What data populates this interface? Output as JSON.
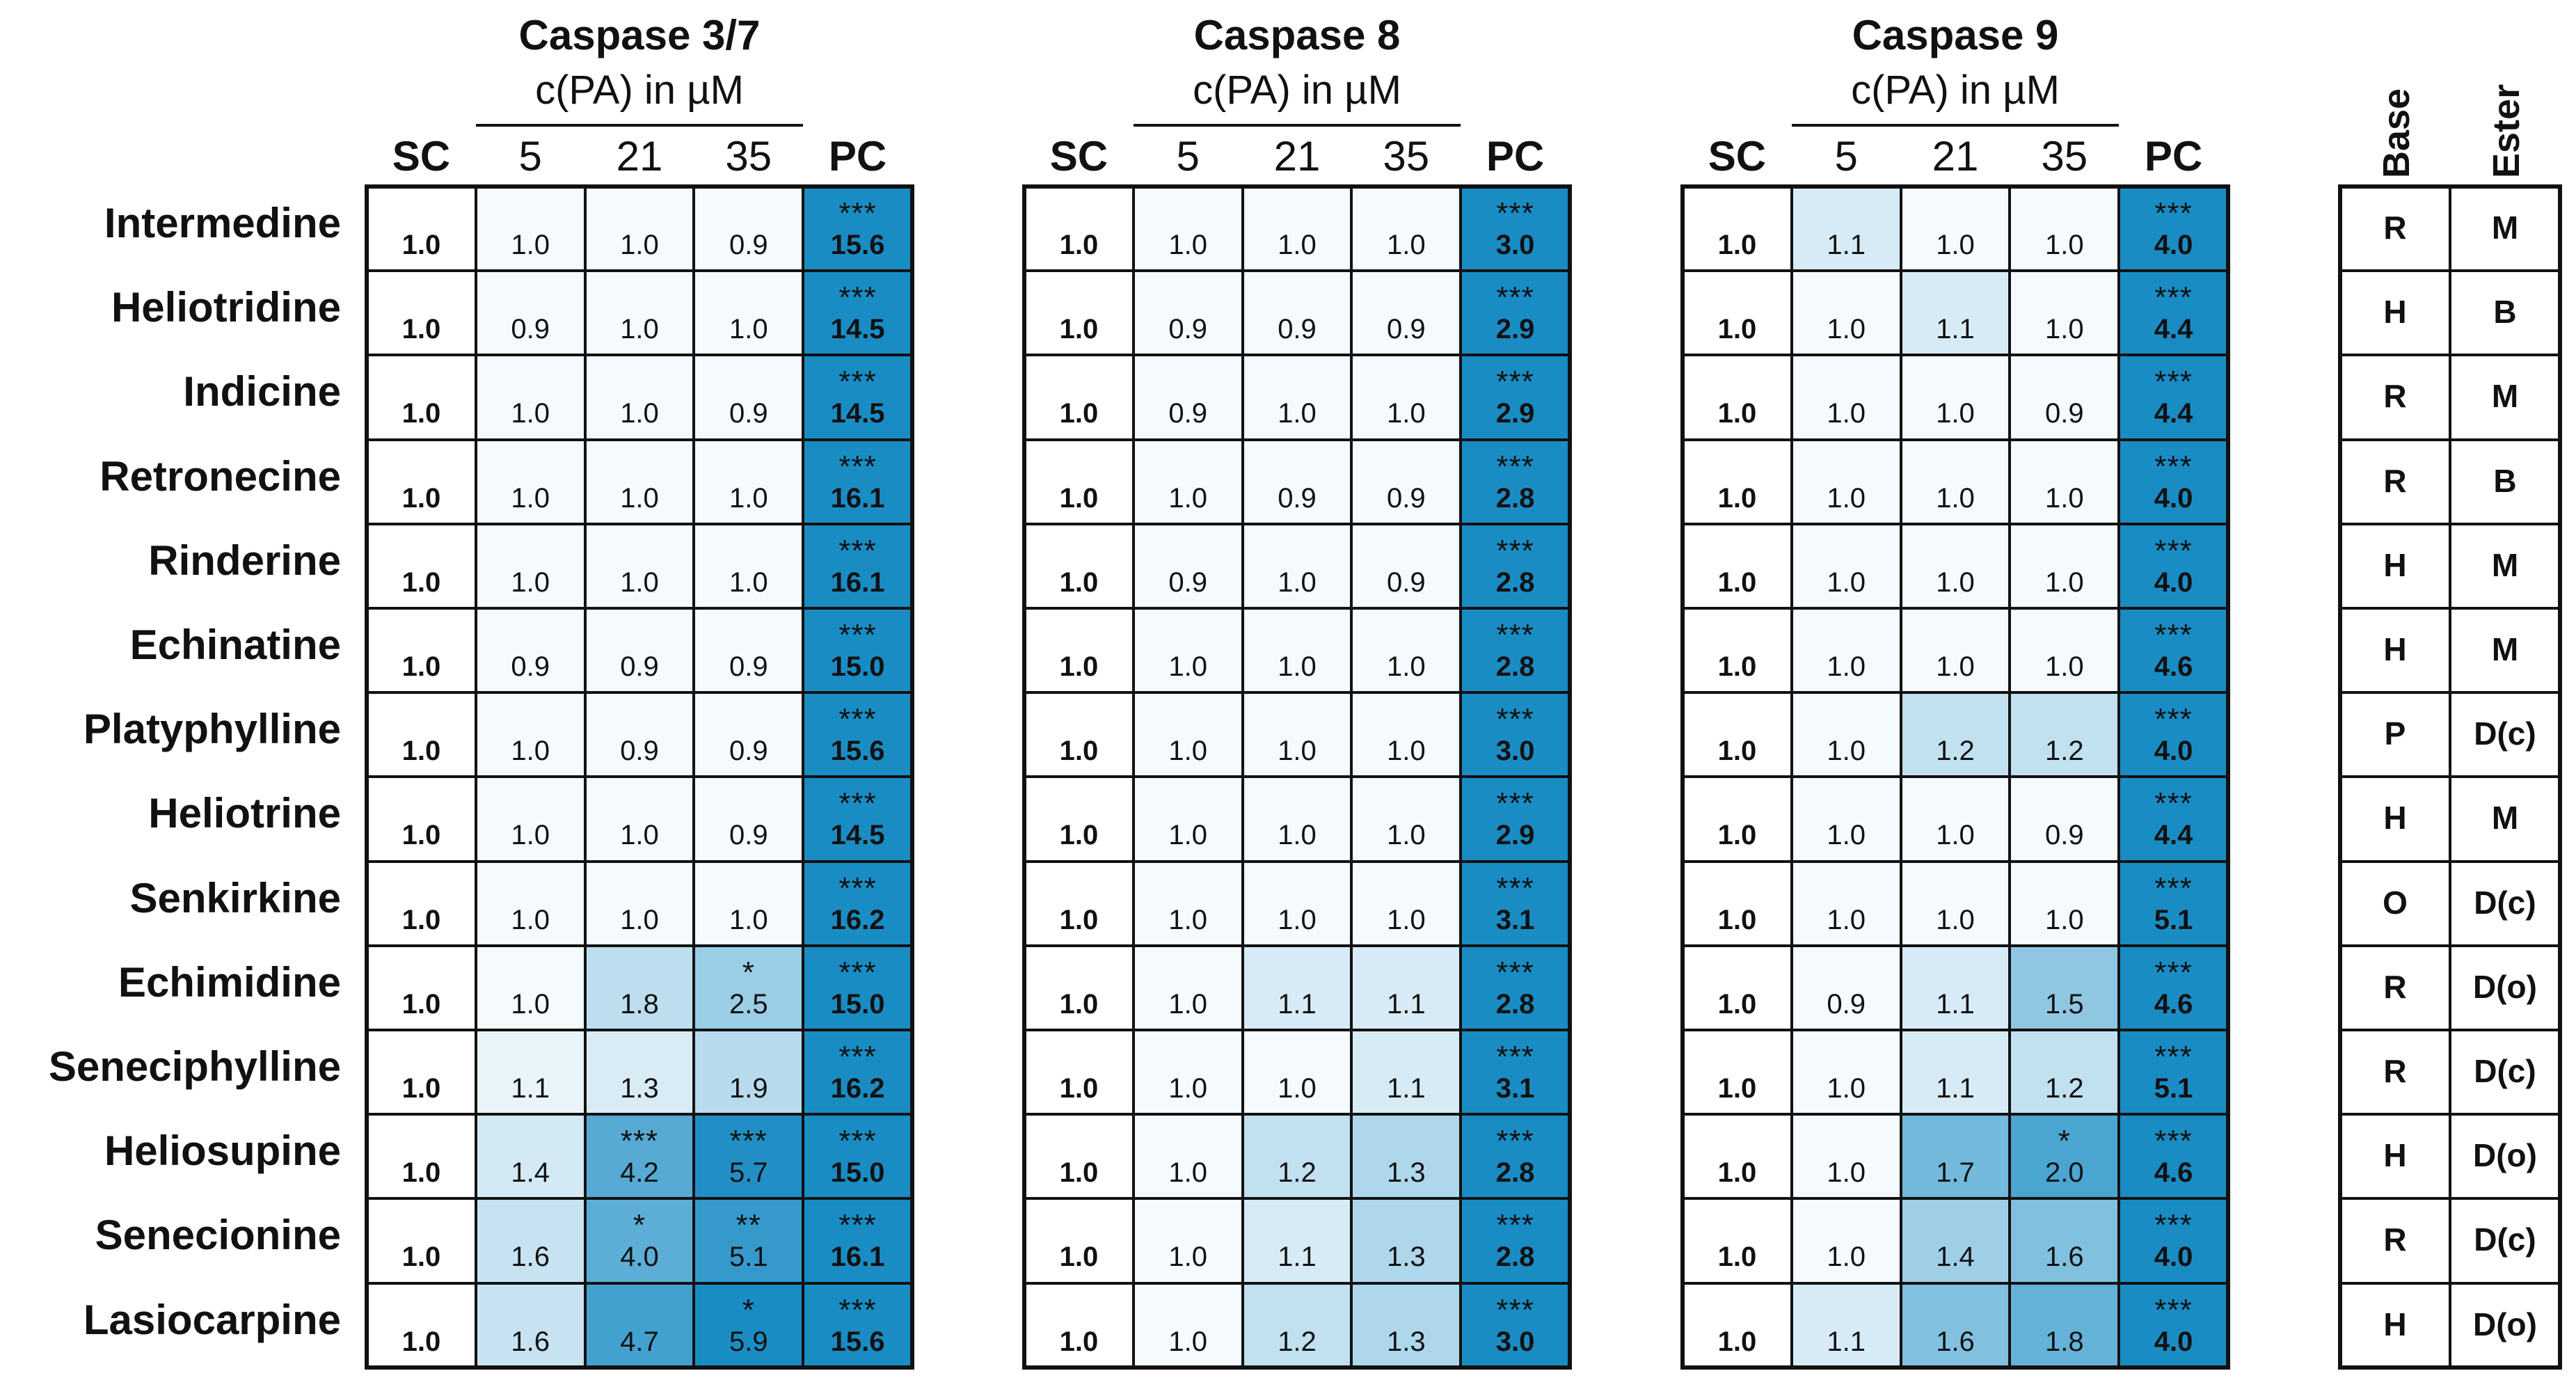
{
  "chart_data": {
    "type": "heatmap",
    "unit_label": "c(PA) in µM",
    "column_labels": [
      "SC",
      "5",
      "21",
      "35",
      "PC"
    ],
    "rows": [
      "Intermedine",
      "Heliotridine",
      "Indicine",
      "Retronecine",
      "Rinderine",
      "Echinatine",
      "Platyphylline",
      "Heliotrine",
      "Senkirkine",
      "Echimidine",
      "Seneciphylline",
      "Heliosupine",
      "Senecionine",
      "Lasiocarpine"
    ],
    "panels": [
      {
        "title": "Caspase 3/7",
        "values": [
          [
            "1.0",
            "1.0",
            "1.0",
            "0.9",
            "15.6"
          ],
          [
            "1.0",
            "0.9",
            "1.0",
            "1.0",
            "14.5"
          ],
          [
            "1.0",
            "1.0",
            "1.0",
            "0.9",
            "14.5"
          ],
          [
            "1.0",
            "1.0",
            "1.0",
            "1.0",
            "16.1"
          ],
          [
            "1.0",
            "1.0",
            "1.0",
            "1.0",
            "16.1"
          ],
          [
            "1.0",
            "0.9",
            "0.9",
            "0.9",
            "15.0"
          ],
          [
            "1.0",
            "1.0",
            "0.9",
            "0.9",
            "15.6"
          ],
          [
            "1.0",
            "1.0",
            "1.0",
            "0.9",
            "14.5"
          ],
          [
            "1.0",
            "1.0",
            "1.0",
            "1.0",
            "16.2"
          ],
          [
            "1.0",
            "1.0",
            "1.8",
            "2.5",
            "15.0"
          ],
          [
            "1.0",
            "1.1",
            "1.3",
            "1.9",
            "16.2"
          ],
          [
            "1.0",
            "1.4",
            "4.2",
            "5.7",
            "15.0"
          ],
          [
            "1.0",
            "1.6",
            "4.0",
            "5.1",
            "16.1"
          ],
          [
            "1.0",
            "1.6",
            "4.7",
            "5.9",
            "15.6"
          ]
        ],
        "significance": [
          [
            "",
            "",
            "",
            "",
            "***"
          ],
          [
            "",
            "",
            "",
            "",
            "***"
          ],
          [
            "",
            "",
            "",
            "",
            "***"
          ],
          [
            "",
            "",
            "",
            "",
            "***"
          ],
          [
            "",
            "",
            "",
            "",
            "***"
          ],
          [
            "",
            "",
            "",
            "",
            "***"
          ],
          [
            "",
            "",
            "",
            "",
            "***"
          ],
          [
            "",
            "",
            "",
            "",
            "***"
          ],
          [
            "",
            "",
            "",
            "",
            "***"
          ],
          [
            "",
            "",
            "",
            "*",
            "***"
          ],
          [
            "",
            "",
            "",
            "",
            "***"
          ],
          [
            "",
            "",
            "***",
            "***",
            "***"
          ],
          [
            "",
            "",
            "*",
            "**",
            "***"
          ],
          [
            "",
            "",
            "",
            "*",
            "***"
          ]
        ]
      },
      {
        "title": "Caspase 8",
        "values": [
          [
            "1.0",
            "1.0",
            "1.0",
            "1.0",
            "3.0"
          ],
          [
            "1.0",
            "0.9",
            "0.9",
            "0.9",
            "2.9"
          ],
          [
            "1.0",
            "0.9",
            "1.0",
            "1.0",
            "2.9"
          ],
          [
            "1.0",
            "1.0",
            "0.9",
            "0.9",
            "2.8"
          ],
          [
            "1.0",
            "0.9",
            "1.0",
            "0.9",
            "2.8"
          ],
          [
            "1.0",
            "1.0",
            "1.0",
            "1.0",
            "2.8"
          ],
          [
            "1.0",
            "1.0",
            "1.0",
            "1.0",
            "3.0"
          ],
          [
            "1.0",
            "1.0",
            "1.0",
            "1.0",
            "2.9"
          ],
          [
            "1.0",
            "1.0",
            "1.0",
            "1.0",
            "3.1"
          ],
          [
            "1.0",
            "1.0",
            "1.1",
            "1.1",
            "2.8"
          ],
          [
            "1.0",
            "1.0",
            "1.0",
            "1.1",
            "3.1"
          ],
          [
            "1.0",
            "1.0",
            "1.2",
            "1.3",
            "2.8"
          ],
          [
            "1.0",
            "1.0",
            "1.1",
            "1.3",
            "2.8"
          ],
          [
            "1.0",
            "1.0",
            "1.2",
            "1.3",
            "3.0"
          ]
        ],
        "significance": [
          [
            "",
            "",
            "",
            "",
            "***"
          ],
          [
            "",
            "",
            "",
            "",
            "***"
          ],
          [
            "",
            "",
            "",
            "",
            "***"
          ],
          [
            "",
            "",
            "",
            "",
            "***"
          ],
          [
            "",
            "",
            "",
            "",
            "***"
          ],
          [
            "",
            "",
            "",
            "",
            "***"
          ],
          [
            "",
            "",
            "",
            "",
            "***"
          ],
          [
            "",
            "",
            "",
            "",
            "***"
          ],
          [
            "",
            "",
            "",
            "",
            "***"
          ],
          [
            "",
            "",
            "",
            "",
            "***"
          ],
          [
            "",
            "",
            "",
            "",
            "***"
          ],
          [
            "",
            "",
            "",
            "",
            "***"
          ],
          [
            "",
            "",
            "",
            "",
            "***"
          ],
          [
            "",
            "",
            "",
            "",
            "***"
          ]
        ]
      },
      {
        "title": "Caspase 9",
        "values": [
          [
            "1.0",
            "1.1",
            "1.0",
            "1.0",
            "4.0"
          ],
          [
            "1.0",
            "1.0",
            "1.1",
            "1.0",
            "4.4"
          ],
          [
            "1.0",
            "1.0",
            "1.0",
            "0.9",
            "4.4"
          ],
          [
            "1.0",
            "1.0",
            "1.0",
            "1.0",
            "4.0"
          ],
          [
            "1.0",
            "1.0",
            "1.0",
            "1.0",
            "4.0"
          ],
          [
            "1.0",
            "1.0",
            "1.0",
            "1.0",
            "4.6"
          ],
          [
            "1.0",
            "1.0",
            "1.2",
            "1.2",
            "4.0"
          ],
          [
            "1.0",
            "1.0",
            "1.0",
            "0.9",
            "4.4"
          ],
          [
            "1.0",
            "1.0",
            "1.0",
            "1.0",
            "5.1"
          ],
          [
            "1.0",
            "0.9",
            "1.1",
            "1.5",
            "4.6"
          ],
          [
            "1.0",
            "1.0",
            "1.1",
            "1.2",
            "5.1"
          ],
          [
            "1.0",
            "1.0",
            "1.7",
            "2.0",
            "4.6"
          ],
          [
            "1.0",
            "1.0",
            "1.4",
            "1.6",
            "4.0"
          ],
          [
            "1.0",
            "1.1",
            "1.6",
            "1.8",
            "4.0"
          ]
        ],
        "significance": [
          [
            "",
            "",
            "",
            "",
            "***"
          ],
          [
            "",
            "",
            "",
            "",
            "***"
          ],
          [
            "",
            "",
            "",
            "",
            "***"
          ],
          [
            "",
            "",
            "",
            "",
            "***"
          ],
          [
            "",
            "",
            "",
            "",
            "***"
          ],
          [
            "",
            "",
            "",
            "",
            "***"
          ],
          [
            "",
            "",
            "",
            "",
            "***"
          ],
          [
            "",
            "",
            "",
            "",
            "***"
          ],
          [
            "",
            "",
            "",
            "",
            "***"
          ],
          [
            "",
            "",
            "",
            "",
            "***"
          ],
          [
            "",
            "",
            "",
            "",
            "***"
          ],
          [
            "",
            "",
            "",
            "*",
            "***"
          ],
          [
            "",
            "",
            "",
            "",
            "***"
          ],
          [
            "",
            "",
            "",
            "",
            "***"
          ]
        ]
      }
    ],
    "classification": {
      "headers": [
        "Base",
        "Ester"
      ],
      "values": [
        [
          "R",
          "M"
        ],
        [
          "H",
          "B"
        ],
        [
          "R",
          "M"
        ],
        [
          "R",
          "B"
        ],
        [
          "H",
          "M"
        ],
        [
          "H",
          "M"
        ],
        [
          "P",
          "D(c)"
        ],
        [
          "H",
          "M"
        ],
        [
          "O",
          "D(c)"
        ],
        [
          "R",
          "D(o)"
        ],
        [
          "R",
          "D(c)"
        ],
        [
          "H",
          "D(o)"
        ],
        [
          "R",
          "D(c)"
        ],
        [
          "H",
          "D(o)"
        ]
      ]
    },
    "colors": {
      "pc_fill": "#1a8cc4",
      "scale_low": "#f4fafd",
      "scale_high": "#1a8cc4",
      "text": "#111111"
    }
  }
}
